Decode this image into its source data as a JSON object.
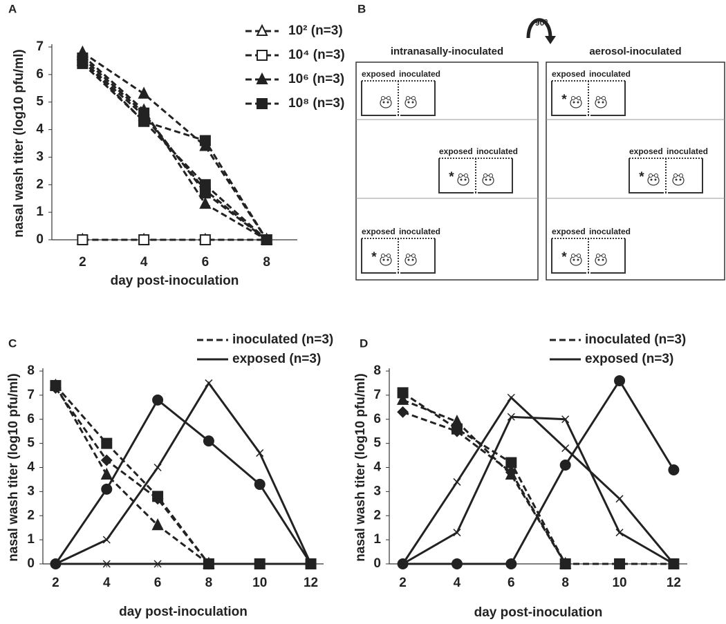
{
  "chart_data": [
    {
      "type": "line",
      "letter": "A",
      "ylabel": "nasal wash titer (log10 pfu/ml)",
      "xlabel": "day post-inoculation",
      "x": [
        2,
        4,
        6,
        8
      ],
      "xlim": [
        1,
        9
      ],
      "xticks": [
        2,
        4,
        6,
        8
      ],
      "ylim": [
        0,
        7
      ],
      "yticks": [
        0,
        1,
        2,
        3,
        4,
        5,
        6,
        7
      ],
      "legend_markers": true,
      "series": [
        {
          "name": "10² (n=3)",
          "color": "#222222",
          "dash": true,
          "replicates": [
            {
              "marker": "triangle-open",
              "values": [
                0,
                0,
                0,
                0
              ]
            }
          ]
        },
        {
          "name": "10⁴ (n=3)",
          "color": "#222222",
          "dash": true,
          "replicates": [
            {
              "marker": "square-open",
              "values": [
                0,
                0,
                0,
                0
              ]
            }
          ]
        },
        {
          "name": "10⁶ (n=3)",
          "color": "#222222",
          "dash": true,
          "replicates": [
            {
              "marker": "triangle",
              "values": [
                6.8,
                5.3,
                3.4,
                0
              ]
            },
            {
              "marker": "triangle",
              "values": [
                6.7,
                4.7,
                1.3,
                0
              ]
            },
            {
              "marker": "triangle",
              "values": [
                6.5,
                4.5,
                1.8,
                0
              ]
            }
          ]
        },
        {
          "name": "10⁸ (n=3)",
          "color": "#222222",
          "dash": true,
          "replicates": [
            {
              "marker": "square",
              "values": [
                6.5,
                4.3,
                2.0,
                0
              ]
            },
            {
              "marker": "square",
              "values": [
                6.4,
                4.3,
                3.6,
                0
              ]
            },
            {
              "marker": "square",
              "values": [
                6.6,
                4.6,
                1.7,
                0
              ]
            }
          ]
        }
      ]
    },
    {
      "type": "line",
      "letter": "C",
      "ylabel": "nasal wash titer (log10 pfu/ml)",
      "xlabel": "day post-inoculation",
      "x": [
        2,
        4,
        6,
        8,
        10,
        12
      ],
      "xlim": [
        1.5,
        12.5
      ],
      "xticks": [
        2,
        4,
        6,
        8,
        10,
        12
      ],
      "ylim": [
        0,
        8
      ],
      "yticks": [
        0,
        1,
        2,
        3,
        4,
        5,
        6,
        7,
        8
      ],
      "legend_markers": false,
      "series": [
        {
          "name": "inoculated (n=3)",
          "color": "#222222",
          "dash": true,
          "replicates": [
            {
              "marker": "square",
              "values": [
                7.4,
                5.0,
                2.8,
                0,
                0,
                0
              ]
            },
            {
              "marker": "triangle",
              "values": [
                7.4,
                3.7,
                1.6,
                0,
                null,
                null
              ]
            },
            {
              "marker": "diamond",
              "values": [
                7.3,
                4.3,
                2.7,
                0,
                null,
                null
              ]
            }
          ]
        },
        {
          "name": "exposed (n=3)",
          "color": "#222222",
          "dash": false,
          "replicates": [
            {
              "marker": "circle",
              "values": [
                0,
                3.1,
                6.8,
                5.1,
                3.3,
                0
              ]
            },
            {
              "marker": "x",
              "values": [
                0,
                1.0,
                4.0,
                7.5,
                4.6,
                0
              ]
            },
            {
              "marker": "x",
              "values": [
                0,
                0,
                0,
                0,
                0,
                0
              ]
            }
          ]
        }
      ]
    },
    {
      "type": "line",
      "letter": "D",
      "ylabel": "nasal wash titer (log10 pfu/ml)",
      "xlabel": "day post-inoculation",
      "x": [
        2,
        4,
        6,
        8,
        10,
        12
      ],
      "xlim": [
        1.5,
        12.5
      ],
      "xticks": [
        2,
        4,
        6,
        8,
        10,
        12
      ],
      "ylim": [
        0,
        8
      ],
      "yticks": [
        0,
        1,
        2,
        3,
        4,
        5,
        6,
        7,
        8
      ],
      "legend_markers": false,
      "series": [
        {
          "name": "inoculated (n=3)",
          "color": "#222222",
          "dash": true,
          "replicates": [
            {
              "marker": "square",
              "values": [
                7.1,
                5.6,
                4.2,
                0,
                0,
                0
              ]
            },
            {
              "marker": "triangle",
              "values": [
                6.8,
                5.9,
                3.7,
                0,
                null,
                null
              ]
            },
            {
              "marker": "diamond",
              "values": [
                6.3,
                5.5,
                3.8,
                0,
                null,
                null
              ]
            }
          ]
        },
        {
          "name": "exposed (n=3)",
          "color": "#222222",
          "dash": false,
          "replicates": [
            {
              "marker": "circle",
              "values": [
                0,
                0,
                0,
                4.1,
                7.6,
                3.9
              ]
            },
            {
              "marker": "x",
              "values": [
                0,
                3.4,
                6.9,
                4.8,
                2.7,
                0
              ]
            },
            {
              "marker": "x",
              "values": [
                0,
                1.3,
                6.1,
                6.0,
                1.3,
                0
              ]
            }
          ]
        }
      ]
    }
  ],
  "diagram": {
    "letter": "B",
    "rotation_label": "90⁰",
    "panels": [
      {
        "title": "intranasally-inoculated",
        "rows": [
          {
            "labels": [
              "exposed",
              "inoculated"
            ]
          },
          {
            "labels": [
              "exposed",
              "inoculated"
            ],
            "mark": "*"
          },
          {
            "labels": [
              "exposed",
              "inoculated"
            ],
            "mark": "*"
          }
        ]
      },
      {
        "title": "aerosol-inoculated",
        "rows": [
          {
            "labels": [
              "exposed",
              "inoculated"
            ],
            "mark": "*"
          },
          {
            "labels": [
              "exposed",
              "inoculated"
            ],
            "mark": "*"
          },
          {
            "labels": [
              "exposed",
              "inoculated"
            ],
            "mark": "*"
          }
        ]
      }
    ]
  }
}
